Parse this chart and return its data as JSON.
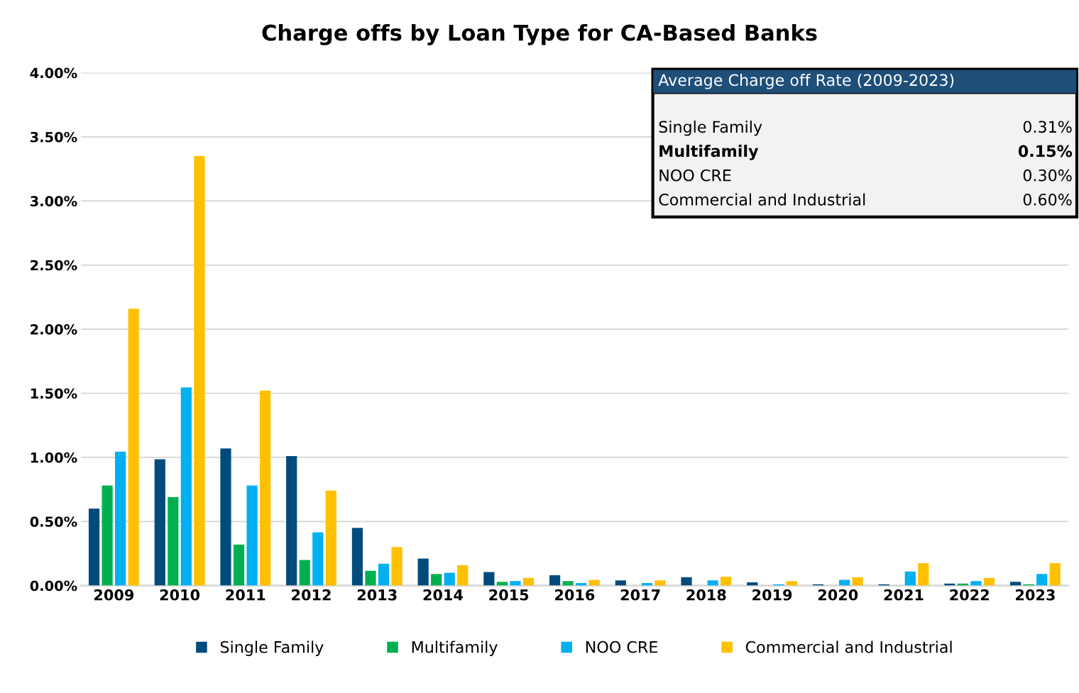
{
  "chart_data": {
    "type": "bar",
    "title": "Charge offs by Loan Type for CA-Based Banks",
    "categories": [
      "2009",
      "2010",
      "2011",
      "2012",
      "2013",
      "2014",
      "2015",
      "2016",
      "2017",
      "2018",
      "2019",
      "2020",
      "2021",
      "2022",
      "2023"
    ],
    "series": [
      {
        "name": "Single Family",
        "color": "#004b7c",
        "values": [
          0.6,
          0.985,
          1.07,
          1.01,
          0.45,
          0.21,
          0.105,
          0.08,
          0.04,
          0.065,
          0.025,
          0.01,
          0.01,
          0.015,
          0.03
        ]
      },
      {
        "name": "Multifamily",
        "color": "#00b050",
        "values": [
          0.78,
          0.69,
          0.32,
          0.2,
          0.115,
          0.09,
          0.03,
          0.035,
          0,
          0,
          0,
          0,
          0,
          0.015,
          0.01
        ]
      },
      {
        "name": "NOO CRE",
        "color": "#00b0f0",
        "values": [
          1.045,
          1.545,
          0.78,
          0.415,
          0.17,
          0.1,
          0.035,
          0.02,
          0.02,
          0.04,
          0.01,
          0.045,
          0.11,
          0.035,
          0.09
        ]
      },
      {
        "name": "Commercial and Industrial",
        "color": "#ffc000",
        "values": [
          2.16,
          3.35,
          1.52,
          0.74,
          0.3,
          0.16,
          0.06,
          0.045,
          0.04,
          0.07,
          0.035,
          0.065,
          0.175,
          0.06,
          0.175
        ]
      }
    ],
    "ylim": [
      0,
      4.0
    ],
    "yticks": [
      {
        "value": 0,
        "label": "0.00%"
      },
      {
        "value": 0.5,
        "label": "0.50%"
      },
      {
        "value": 1.0,
        "label": "1.00%"
      },
      {
        "value": 1.5,
        "label": "1.50%"
      },
      {
        "value": 2.0,
        "label": "2.00%"
      },
      {
        "value": 2.5,
        "label": "2.50%"
      },
      {
        "value": 3.0,
        "label": "3.00%"
      },
      {
        "value": 3.5,
        "label": "3.50%"
      },
      {
        "value": 4.0,
        "label": "4.00%"
      }
    ],
    "grid": "y",
    "legend": "bottom",
    "annotations": [
      "Average Charge off Rate (2009-2023)",
      "Single Family",
      "0.31%",
      "Multifamily",
      "0.15%",
      "NOO CRE",
      "0.30%",
      "Commercial and Industrial",
      "0.60%"
    ]
  }
}
